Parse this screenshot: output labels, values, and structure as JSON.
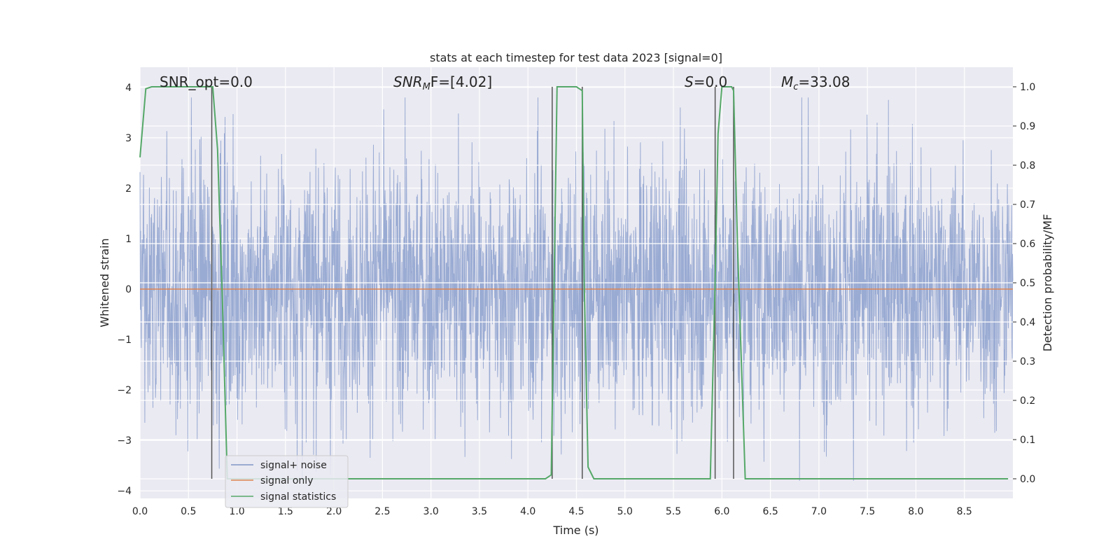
{
  "chart_data": {
    "type": "line",
    "title": "stats at each timestep for test data 2023 [signal=0]",
    "xlabel": "Time (s)",
    "ylabel": "Whitened strain",
    "y2label": "Detection probability/MF",
    "xlim": [
      0,
      9.0
    ],
    "ylim": [
      -4.15,
      4.4
    ],
    "y2lim": [
      -0.05,
      1.05
    ],
    "x_ticks": [
      "0.0",
      "0.5",
      "1.0",
      "1.5",
      "2.0",
      "2.5",
      "3.0",
      "3.5",
      "4.0",
      "4.5",
      "5.0",
      "5.5",
      "6.0",
      "6.5",
      "7.0",
      "7.5",
      "8.0",
      "8.5"
    ],
    "y_ticks": [
      "4",
      "3",
      "2",
      "1",
      "0",
      "−1",
      "−2",
      "−3",
      "−4"
    ],
    "y2_ticks": [
      "1.0",
      "0.9",
      "0.8",
      "0.7",
      "0.6",
      "0.5",
      "0.4",
      "0.3",
      "0.2",
      "0.1",
      "0.0"
    ],
    "grid": true,
    "legend_position": "lower-left",
    "annotations": {
      "snr_opt": "SNR_opt=0.0",
      "snr_mf_base": "SNR",
      "snr_mf_sub": "M",
      "snr_mf_rest": "F=[4.02]",
      "s_var": "S",
      "s_rest": "=0.0",
      "mc_base": "M",
      "mc_sub": "c",
      "mc_rest": "=33.08"
    },
    "series": [
      {
        "name": "signal+ noise",
        "color": "#7f96c8",
        "axis": "left",
        "sample_rate": 300,
        "envelope_std": 1.0,
        "spike_max": 3.8,
        "x_range": [
          0,
          9.0
        ]
      },
      {
        "name": "signal only",
        "color": "#dd8452",
        "axis": "left",
        "x": [
          0,
          9.0
        ],
        "y": [
          0,
          0
        ]
      },
      {
        "name": "signal statistics",
        "color": "#55a868",
        "axis": "right",
        "x": [
          0.0,
          0.06,
          0.12,
          0.2,
          0.3,
          0.4,
          0.5,
          0.6,
          0.7,
          0.75,
          0.8,
          0.85,
          0.9,
          1.0,
          2.0,
          3.0,
          4.0,
          4.18,
          4.24,
          4.27,
          4.3,
          4.5,
          4.56,
          4.58,
          4.62,
          4.68,
          5.0,
          5.5,
          5.88,
          5.93,
          5.96,
          6.0,
          6.1,
          6.12,
          6.16,
          6.24,
          7.0,
          8.0,
          8.95
        ],
        "y": [
          0.82,
          0.995,
          1.0,
          1.0,
          1.0,
          1.0,
          1.0,
          1.0,
          1.0,
          1.0,
          0.84,
          0.45,
          0.0,
          0.0,
          0.0,
          0.0,
          0.0,
          0.0,
          0.01,
          0.5,
          1.0,
          1.0,
          0.99,
          0.5,
          0.03,
          0.0,
          0.0,
          0.0,
          0.0,
          0.5,
          0.88,
          1.0,
          1.0,
          0.99,
          0.6,
          0.0,
          0.0,
          0.0,
          0.0
        ]
      }
    ],
    "vlines": [
      0.74,
      4.25,
      4.56,
      5.93,
      6.12
    ],
    "vline_color": "#555555"
  }
}
